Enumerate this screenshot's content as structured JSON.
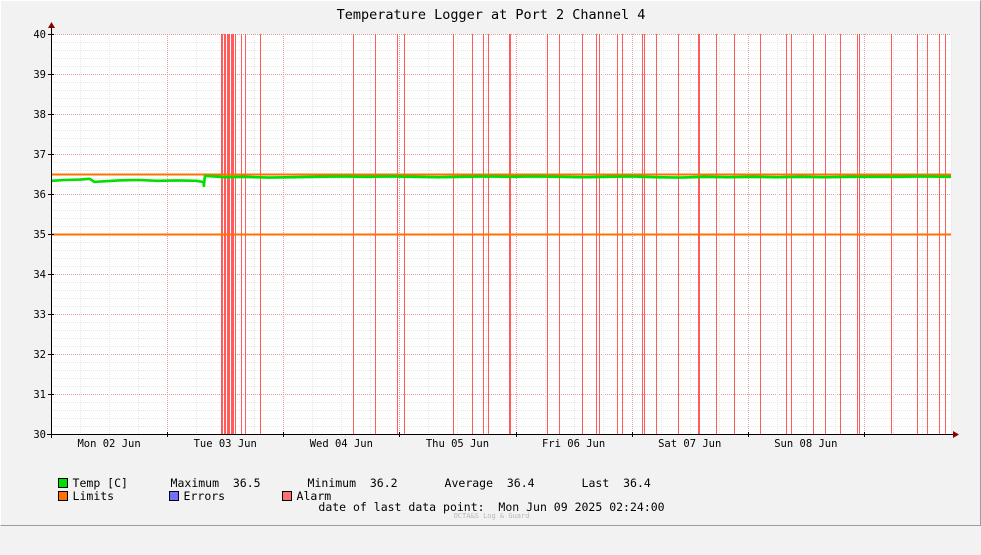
{
  "chart_data": {
    "type": "line",
    "title": "Temperature Logger at Port 2 Channel 4",
    "ylim": [
      30,
      40
    ],
    "yticks": [
      30,
      31,
      32,
      33,
      34,
      35,
      36,
      37,
      38,
      39,
      40
    ],
    "xlim_hours": [
      0,
      186
    ],
    "xtick_labels": [
      "Mon 02 Jun",
      "Tue 03 Jun",
      "Wed 04 Jun",
      "Thu 05 Jun",
      "Fri 06 Jun",
      "Sat 07 Jun",
      "Sun 08 Jun"
    ],
    "xtick_hours": [
      12,
      36,
      60,
      84,
      108,
      132,
      156
    ],
    "series": [
      {
        "name": "Temp [C]",
        "color": "#00e000",
        "x_hours": [
          0,
          3,
          6,
          8,
          9,
          10,
          14,
          18,
          22,
          26,
          30,
          31.5,
          31.6,
          31.8,
          32,
          36,
          40,
          45,
          50,
          55,
          60,
          65,
          70,
          75,
          80,
          85,
          90,
          95,
          100,
          105,
          110,
          115,
          120,
          125,
          130,
          135,
          140,
          145,
          150,
          155,
          160,
          165,
          170,
          175,
          180,
          186
        ],
        "values": [
          36.33,
          36.35,
          36.36,
          36.38,
          36.3,
          36.31,
          36.34,
          36.35,
          36.33,
          36.34,
          36.33,
          36.3,
          36.2,
          36.45,
          36.45,
          36.42,
          36.43,
          36.41,
          36.42,
          36.43,
          36.44,
          36.43,
          36.44,
          36.43,
          36.42,
          36.43,
          36.44,
          36.43,
          36.44,
          36.43,
          36.42,
          36.43,
          36.44,
          36.42,
          36.41,
          36.43,
          36.42,
          36.43,
          36.42,
          36.43,
          36.42,
          36.43,
          36.43,
          36.43,
          36.44,
          36.43
        ]
      },
      {
        "name": "Limits",
        "color": "#ff7000",
        "limit_values": [
          35,
          36.5
        ]
      }
    ],
    "alarm_color": "#ff4040",
    "alarm_hours": [
      35.1,
      35.4,
      35.7,
      36.0,
      36.3,
      36.5,
      36.8,
      37.1,
      37.4,
      37.7,
      38.0,
      39.3,
      40.0,
      43.1,
      62.4,
      66.9,
      71.6,
      72.9,
      83.1,
      87.0,
      89.3,
      90.3,
      94.7,
      94.9,
      102.5,
      104.9,
      109.8,
      112.7,
      113.3,
      117.0,
      118.1,
      122.1,
      122.6,
      125.1,
      129.5,
      133.8,
      134.0,
      137.5,
      141.1,
      146.6,
      151.8,
      153.0,
      157.4,
      160.0,
      163.0,
      166.6,
      166.9,
      173.6,
      178.9,
      181.0,
      183.5,
      184.7
    ]
  },
  "legend": {
    "temp_label": "Temp [C]",
    "maximum_label": "Maximum",
    "maximum_value": "36.5",
    "minimum_label": "Minimum",
    "minimum_value": "36.2",
    "average_label": "Average",
    "average_value": "36.4",
    "last_label": "Last",
    "last_value": "36.4",
    "limits_label": "Limits",
    "errors_label": "Errors",
    "alarm_label": "Alarm",
    "temp_color": "#00e000",
    "limits_color": "#ff7000",
    "errors_color": "#7070ff",
    "alarm_color": "#ff7070"
  },
  "footer": {
    "last_point_label": "date of last data point:",
    "last_point_value": "Mon Jun 09 2025 02:24:00",
    "watermark": "OCTA&S Log & Guard"
  }
}
